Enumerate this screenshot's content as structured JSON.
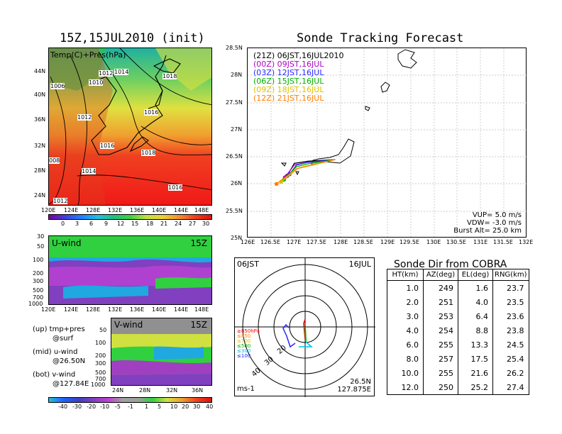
{
  "left": {
    "title": "15Z,15JUL2010 (init)",
    "map_label": "Temp(C)+Pres(hPa)",
    "lat_labels": [
      "44N",
      "40N",
      "36N",
      "32N",
      "28N",
      "24N"
    ],
    "lon_labels": [
      "120E",
      "124E",
      "128E",
      "132E",
      "136E",
      "140E",
      "144E",
      "148E"
    ],
    "isobars": [
      "1006",
      "1012",
      "1014",
      "1010",
      "1018",
      "1012",
      "1016",
      "1016",
      "1018",
      "008",
      "1014",
      "1016",
      "1012"
    ],
    "temp_colorbar": [
      "0",
      "3",
      "6",
      "9",
      "12",
      "15",
      "18",
      "21",
      "24",
      "27",
      "30"
    ],
    "uwind_label": "U-wind",
    "uwind_time": "15Z",
    "uwind_pres": [
      "30",
      "50",
      "100",
      "200",
      "300",
      "500",
      "700",
      "1000"
    ],
    "vwind_label": "V-wind",
    "vwind_time": "15Z",
    "vwind_pres": [
      "50",
      "100",
      "200",
      "300",
      "500",
      "700",
      "1000"
    ],
    "vwind_lat": [
      "24N",
      "28N",
      "32N",
      "36N"
    ],
    "legend": [
      "(up) tmp+pres",
      "@surf",
      "(mid) u-wind",
      "@26.50N",
      "(bot) v-wind",
      "@127.84E"
    ],
    "wind_colorbar": [
      "-40",
      "-30",
      "-20",
      "-10",
      "-5",
      "-1",
      "1",
      "5",
      "10",
      "20",
      "30",
      "40"
    ]
  },
  "track": {
    "title": "Sonde Tracking Forecast",
    "lat_labels": [
      "28.5N",
      "28N",
      "27.5N",
      "27N",
      "26.5N",
      "26N",
      "25.5N",
      "25N"
    ],
    "lon_labels": [
      "126E",
      "126.5E",
      "127E",
      "127.5E",
      "128E",
      "128.5E",
      "129E",
      "129.5E",
      "130E",
      "130.5E",
      "131E",
      "131.5E",
      "132E"
    ],
    "legend": [
      {
        "text": "(21Z) 06JST,16JUL2010",
        "color": "#000000"
      },
      {
        "text": "(00Z) 09JST,16JUL",
        "color": "#b000c8"
      },
      {
        "text": "(03Z) 12JST,16JUL",
        "color": "#2828ff"
      },
      {
        "text": "(06Z) 15JST,16JUL",
        "color": "#00b000"
      },
      {
        "text": "(09Z) 18JST,16JUL",
        "color": "#e0c000"
      },
      {
        "text": "(12Z) 21JST,16JUL",
        "color": "#ff8000"
      }
    ],
    "vup": "VUP= 5.0 m/s",
    "vdw": "VDW= -3.0 m/s",
    "burst": "Burst Alt= 25.0 km"
  },
  "polar": {
    "left_label": "06JST",
    "right_label": "16JUL",
    "height_labels": [
      {
        "text": "≥850hPa",
        "color": "#ff0000"
      },
      {
        "text": "≤850",
        "color": "#ff8000"
      },
      {
        "text": "≤700",
        "color": "#e0c000"
      },
      {
        "text": "≤500",
        "color": "#00b000"
      },
      {
        "text": "≤300",
        "color": "#00c0e0"
      },
      {
        "text": "≤100",
        "color": "#2828ff"
      }
    ],
    "ring_labels": [
      "20",
      "30",
      "40"
    ],
    "unit": "ms-1",
    "lat": "26.5N",
    "lon": "127.875E"
  },
  "sonde": {
    "title": "Sonde Dir from COBRA",
    "headers": [
      "HT(km)",
      "AZ(deg)",
      "EL(deg)",
      "RNG(km)"
    ],
    "rows": [
      [
        "1.0",
        "249",
        "1.6",
        "23.7"
      ],
      [
        "2.0",
        "251",
        "4.0",
        "23.5"
      ],
      [
        "3.0",
        "253",
        "6.4",
        "23.6"
      ],
      [
        "4.0",
        "254",
        "8.8",
        "23.8"
      ],
      [
        "6.0",
        "255",
        "13.3",
        "24.5"
      ],
      [
        "8.0",
        "257",
        "17.5",
        "25.4"
      ],
      [
        "10.0",
        "255",
        "21.6",
        "26.2"
      ],
      [
        "12.0",
        "250",
        "25.2",
        "27.4"
      ]
    ]
  },
  "chart_data": [
    {
      "type": "table",
      "title": "Sonde Dir from COBRA",
      "columns": [
        "HT(km)",
        "AZ(deg)",
        "EL(deg)",
        "RNG(km)"
      ],
      "rows": [
        [
          1.0,
          249,
          1.6,
          23.7
        ],
        [
          2.0,
          251,
          4.0,
          23.5
        ],
        [
          3.0,
          253,
          6.4,
          23.6
        ],
        [
          4.0,
          254,
          8.8,
          23.8
        ],
        [
          6.0,
          255,
          13.3,
          24.5
        ],
        [
          8.0,
          257,
          17.5,
          25.4
        ],
        [
          10.0,
          255,
          21.6,
          26.2
        ],
        [
          12.0,
          250,
          25.2,
          27.4
        ]
      ]
    },
    {
      "type": "scatter",
      "title": "Sonde Tracking Forecast",
      "xlim": [
        126,
        132
      ],
      "ylim": [
        25,
        28.5
      ],
      "series": [
        {
          "name": "(21Z) 06JST,16JUL2010",
          "color": "#000000",
          "x": [
            127.88,
            127.3,
            127.0,
            126.85
          ],
          "y": [
            26.45,
            26.42,
            26.38,
            26.15
          ]
        },
        {
          "name": "(00Z) 09JST,16JUL",
          "color": "#b000c8",
          "x": [
            127.88,
            127.3,
            127.0,
            126.8
          ],
          "y": [
            26.45,
            26.4,
            26.35,
            26.12
          ]
        },
        {
          "name": "(03Z) 12JST,16JUL",
          "color": "#2828ff",
          "x": [
            127.88,
            127.3,
            127.05,
            126.9
          ],
          "y": [
            26.45,
            26.4,
            26.35,
            26.18
          ]
        },
        {
          "name": "(06Z) 15JST,16JUL",
          "color": "#00b000",
          "x": [
            127.88,
            127.35,
            127.05,
            126.78
          ],
          "y": [
            26.45,
            26.38,
            26.32,
            26.08
          ]
        },
        {
          "name": "(09Z) 18JST,16JUL",
          "color": "#e0c000",
          "x": [
            127.88,
            127.4,
            127.1,
            126.72
          ],
          "y": [
            26.45,
            26.36,
            26.3,
            26.04
          ]
        },
        {
          "name": "(12Z) 21JST,16JUL",
          "color": "#ff8000",
          "x": [
            127.88,
            127.4,
            127.05,
            126.62
          ],
          "y": [
            26.45,
            26.35,
            26.28,
            26.0
          ]
        }
      ]
    }
  ]
}
